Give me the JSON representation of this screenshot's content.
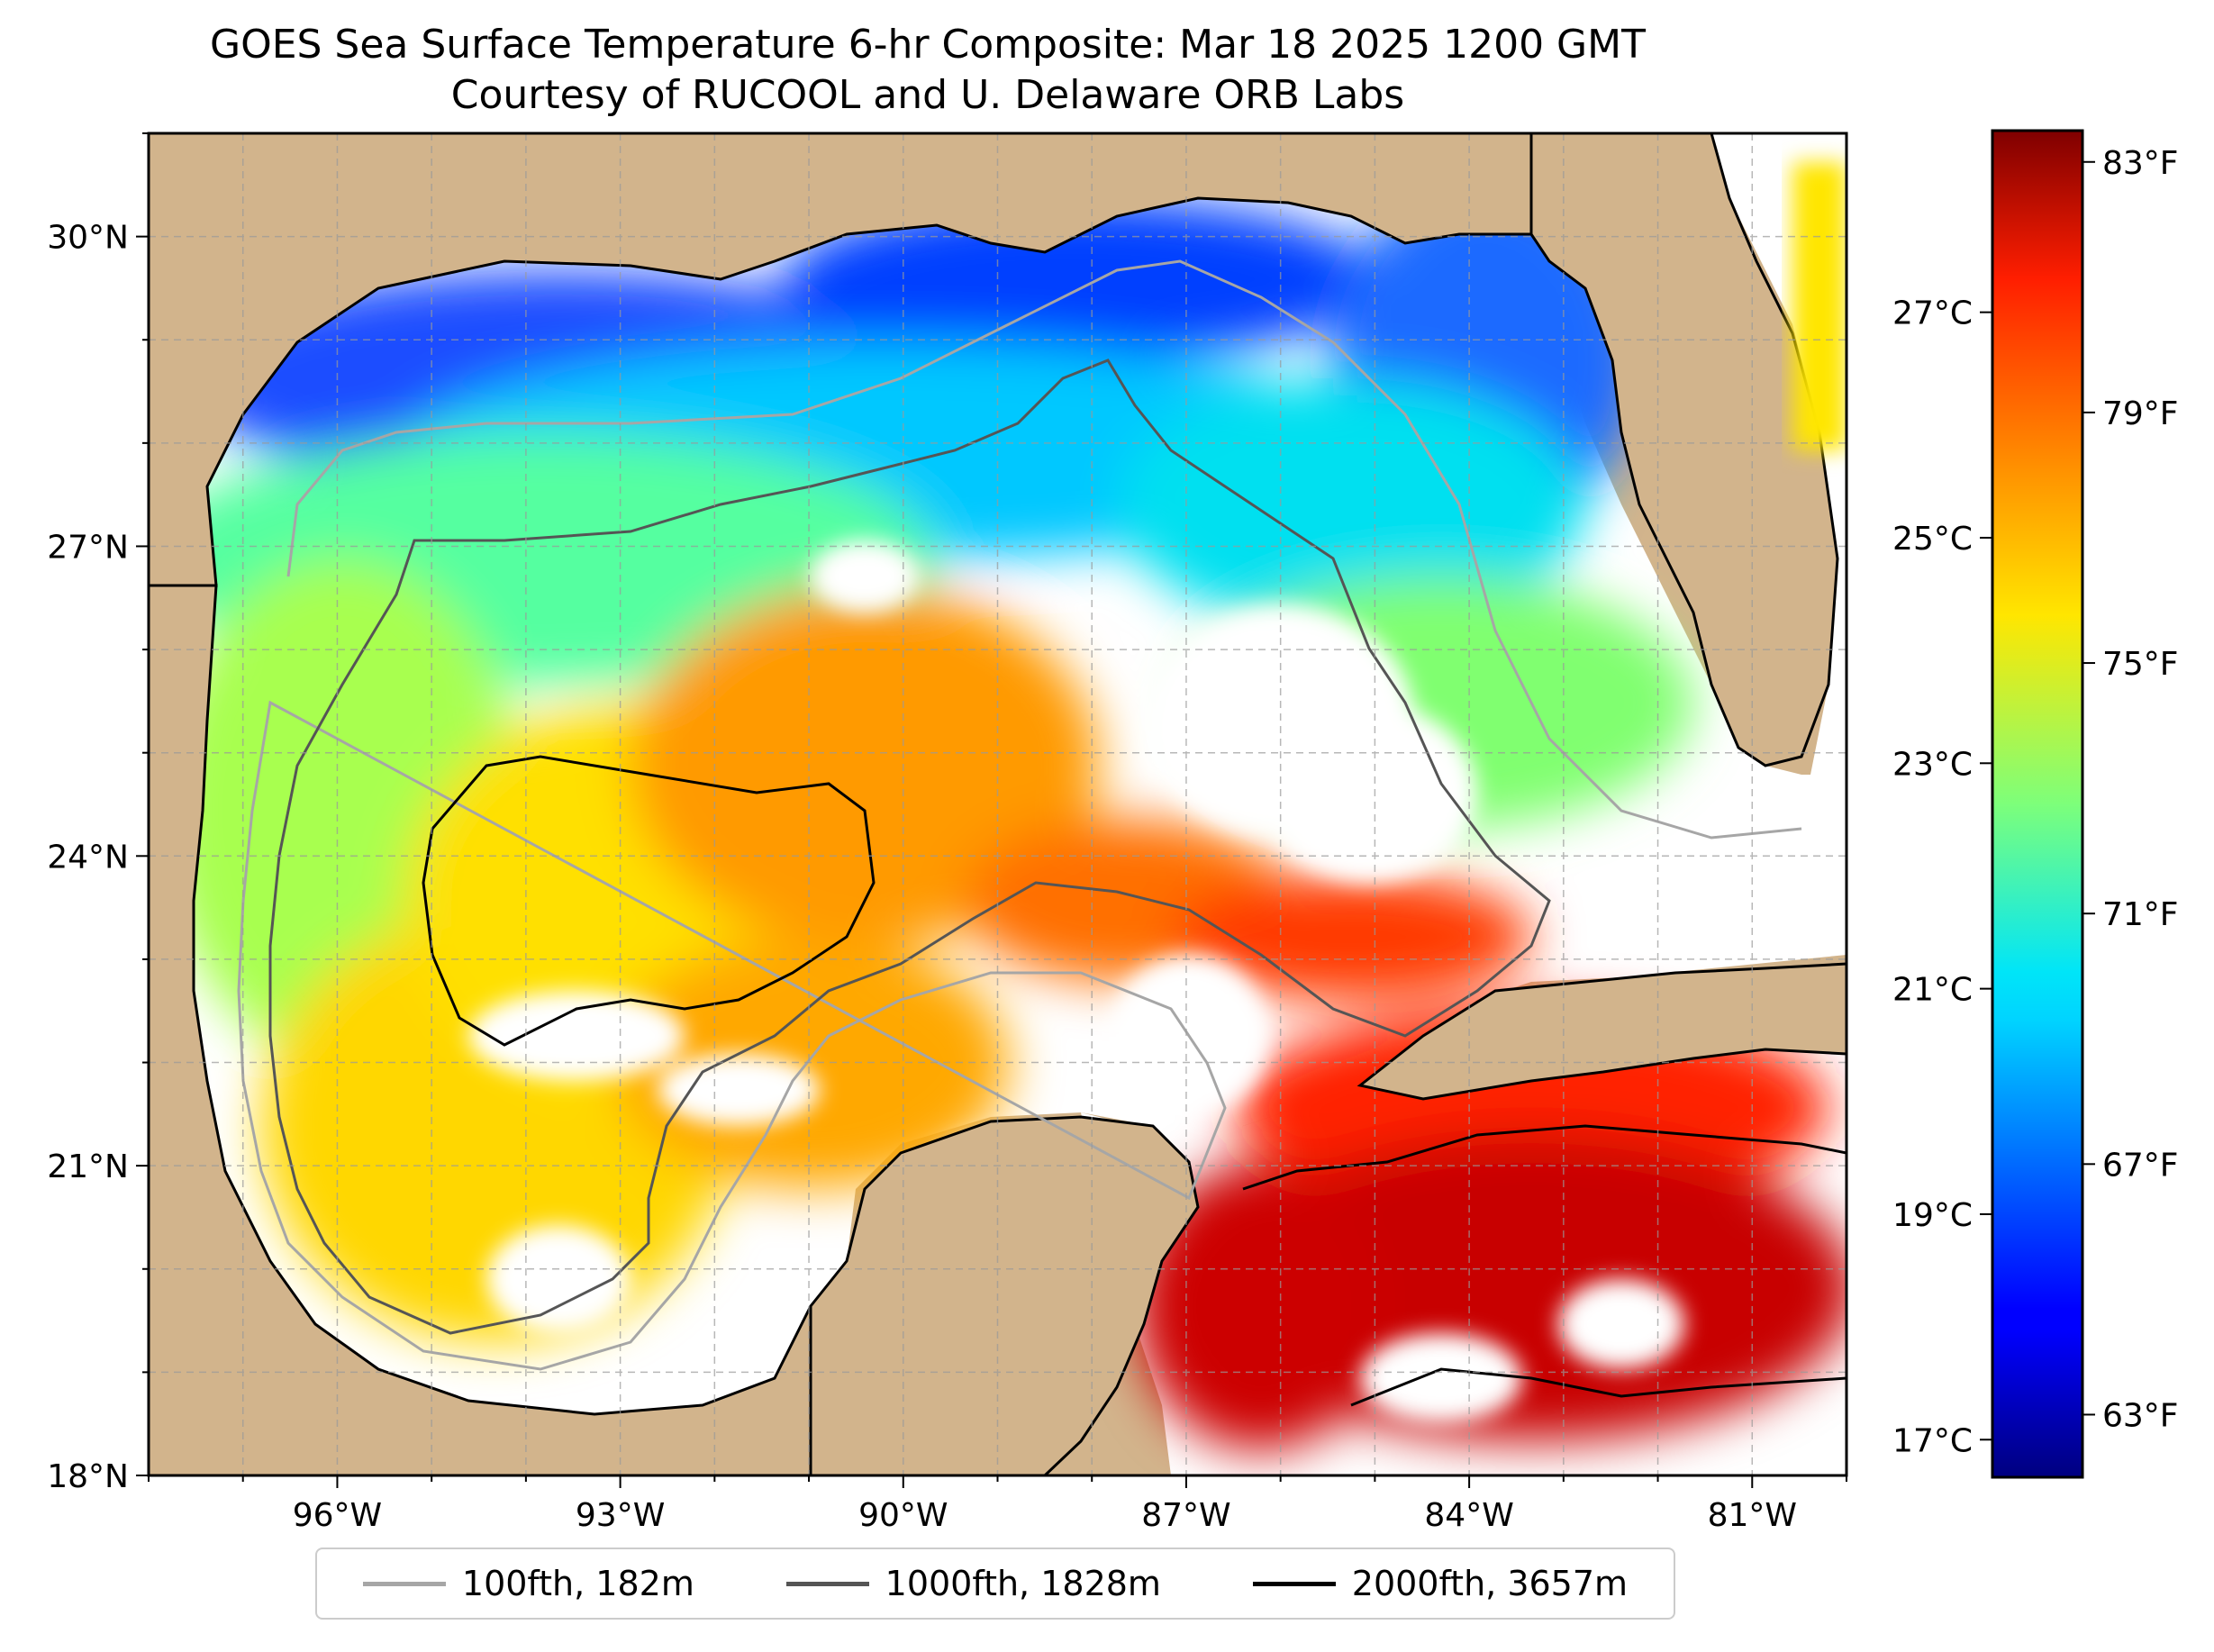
{
  "title": {
    "line1": "GOES Sea Surface Temperature 6-hr Composite: Mar 18 2025 1200 GMT",
    "line2": "Courtesy of RUCOOL and U. Delaware ORB Labs"
  },
  "map": {
    "lon_range": [
      -98,
      -80
    ],
    "lat_range": [
      18,
      31
    ],
    "lat_ticks": [
      {
        "value": 30,
        "label": "30°N"
      },
      {
        "value": 27,
        "label": "27°N"
      },
      {
        "value": 24,
        "label": "24°N"
      },
      {
        "value": 21,
        "label": "21°N"
      },
      {
        "value": 18,
        "label": "18°N"
      }
    ],
    "lon_ticks": [
      {
        "value": -96,
        "label": "96°W"
      },
      {
        "value": -93,
        "label": "93°W"
      },
      {
        "value": -90,
        "label": "90°W"
      },
      {
        "value": -87,
        "label": "87°W"
      },
      {
        "value": -84,
        "label": "84°W"
      },
      {
        "value": -81,
        "label": "81°W"
      }
    ],
    "grid": true,
    "land_color": "#d2b48c",
    "no_data_color": "#ffffff"
  },
  "colorbar": {
    "colormap": "jet",
    "range_f": [
      62,
      83.5
    ],
    "f_ticks": [
      {
        "value": 83,
        "label": "83°F"
      },
      {
        "value": 79,
        "label": "79°F"
      },
      {
        "value": 75,
        "label": "75°F"
      },
      {
        "value": 71,
        "label": "71°F"
      },
      {
        "value": 67,
        "label": "67°F"
      },
      {
        "value": 63,
        "label": "63°F"
      }
    ],
    "c_ticks": [
      {
        "value": 27,
        "label": "27°C"
      },
      {
        "value": 25,
        "label": "25°C"
      },
      {
        "value": 23,
        "label": "23°C"
      },
      {
        "value": 21,
        "label": "21°C"
      },
      {
        "value": 19,
        "label": "19°C"
      },
      {
        "value": 17,
        "label": "17°C"
      }
    ]
  },
  "legend": {
    "items": [
      {
        "label": "100fth, 182m",
        "color": "#a6a6a6"
      },
      {
        "label": "1000fth, 1828m",
        "color": "#555555"
      },
      {
        "label": "2000fth, 3657m",
        "color": "#000000"
      }
    ]
  }
}
